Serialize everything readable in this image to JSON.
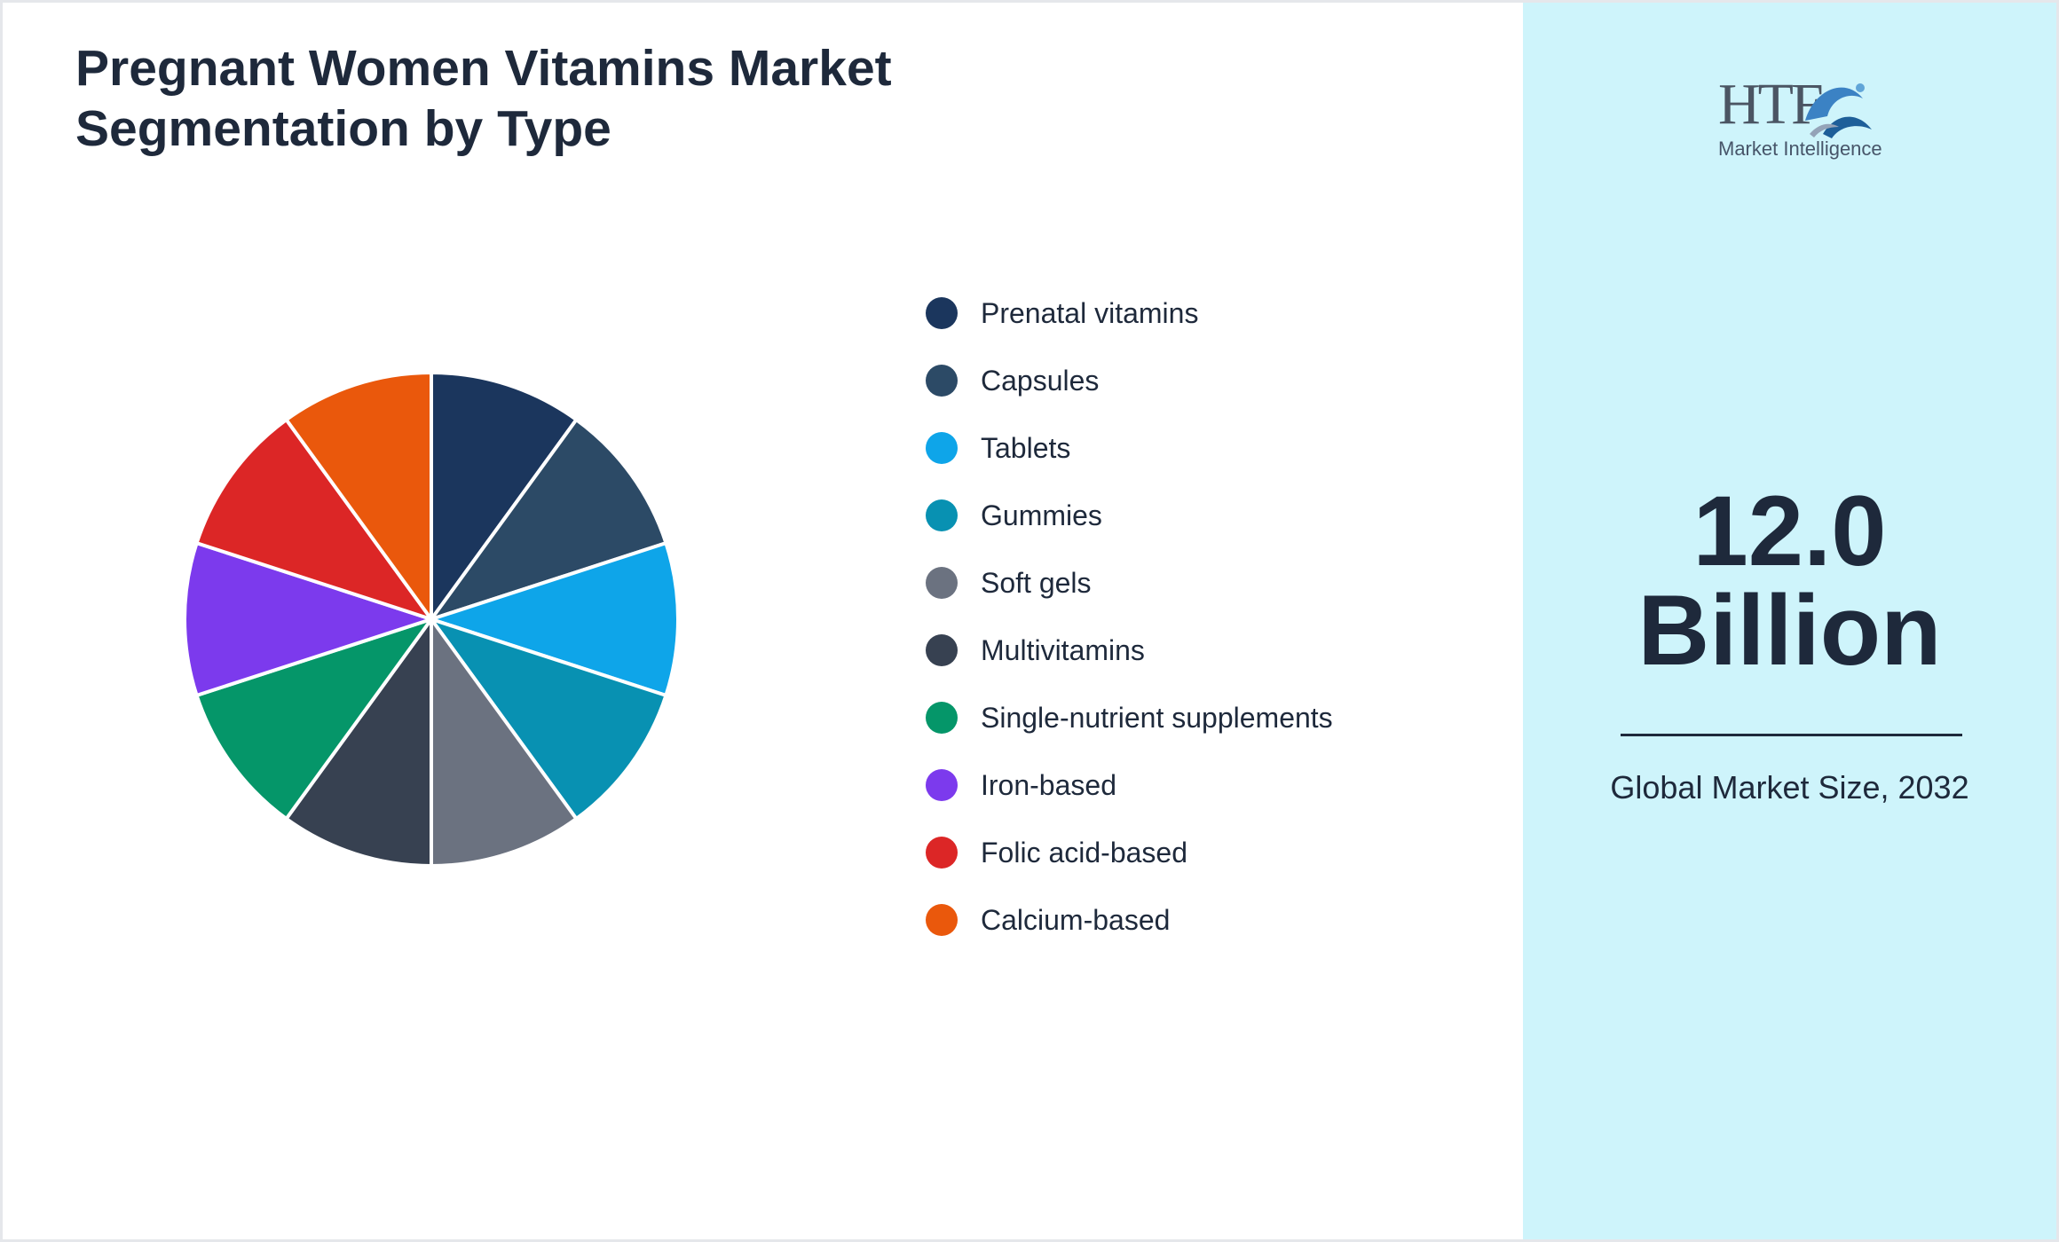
{
  "title": "Pregnant Women Vitamins Market Segmentation by Type",
  "chart_data": {
    "type": "pie",
    "title": "Pregnant Women Vitamins Market Segmentation by Type",
    "legend_position": "right",
    "slices": [
      {
        "label": "Prenatal vitamins",
        "value": 10,
        "color": "#1b365d"
      },
      {
        "label": "Capsules",
        "value": 10,
        "color": "#2c4a66"
      },
      {
        "label": "Tablets",
        "value": 10,
        "color": "#0ea5e9"
      },
      {
        "label": "Gummies",
        "value": 10,
        "color": "#0891b2"
      },
      {
        "label": "Soft gels",
        "value": 10,
        "color": "#6b7280"
      },
      {
        "label": "Multivitamins",
        "value": 10,
        "color": "#374151"
      },
      {
        "label": "Single-nutrient supplements",
        "value": 10,
        "color": "#059669"
      },
      {
        "label": "Iron-based",
        "value": 10,
        "color": "#7c3aed"
      },
      {
        "label": "Folic acid-based",
        "value": 10,
        "color": "#dc2626"
      },
      {
        "label": "Calcium-based",
        "value": 10,
        "color": "#ea580c"
      }
    ]
  },
  "side_panel": {
    "logo": {
      "brand": "HTF",
      "tagline": "Market Intelligence"
    },
    "market_size_value": "12.0",
    "market_size_unit": "Billion",
    "caption": "Global Market Size, 2032"
  }
}
